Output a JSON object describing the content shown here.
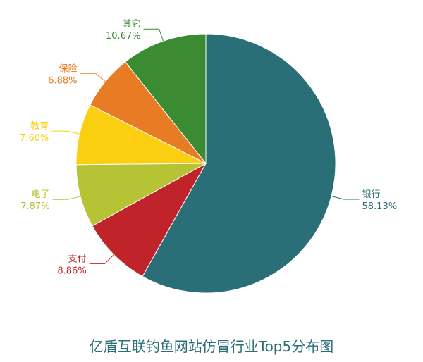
{
  "chart_data": {
    "type": "pie",
    "title": "亿盾互联钓鱼网站仿冒行业Top5分布图",
    "slices": [
      {
        "label": "银行",
        "value": 58.13,
        "value_label": "58.13%",
        "color": "#2a6f77"
      },
      {
        "label": "支付",
        "value": 8.86,
        "value_label": "8.86%",
        "color": "#c1232b"
      },
      {
        "label": "电子",
        "value": 7.87,
        "value_label": "7.87%",
        "color": "#b5c334"
      },
      {
        "label": "教育",
        "value": 7.6,
        "value_label": "7.60%",
        "color": "#fcce10"
      },
      {
        "label": "保险",
        "value": 6.88,
        "value_label": "6.88%",
        "color": "#e87c25"
      },
      {
        "label": "其它",
        "value": 10.67,
        "value_label": "10.67%",
        "color": "#3a8b31"
      }
    ]
  }
}
